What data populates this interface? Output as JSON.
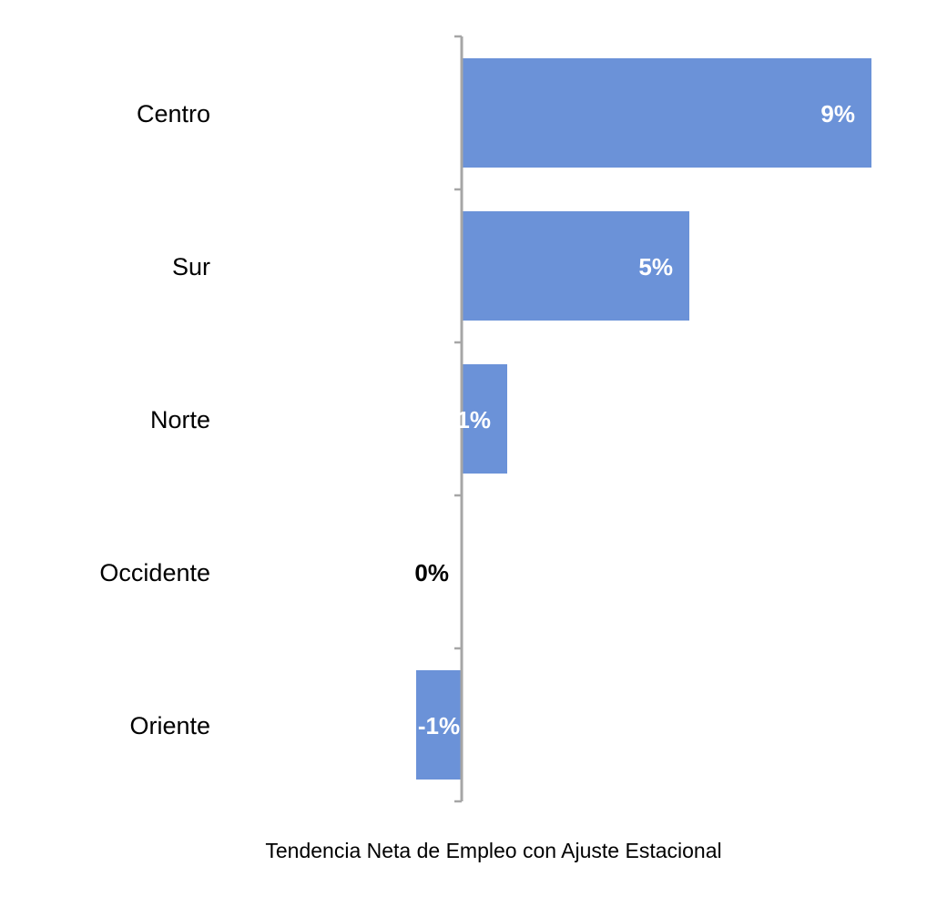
{
  "chart_data": {
    "type": "bar",
    "orientation": "horizontal",
    "categories": [
      "Centro",
      "Sur",
      "Norte",
      "Occidente",
      "Oriente"
    ],
    "values": [
      9,
      5,
      1,
      0,
      -1
    ],
    "data_labels": [
      "9%",
      "5%",
      "1%",
      "0%",
      "-1%"
    ],
    "xlabel": "Tendencia Neta de Empleo con Ajuste Estacional",
    "ylabel": "",
    "title": "",
    "grid": false,
    "legend": "none",
    "colors": {
      "bar": "#6B92D8",
      "axis": "#A6A6A6",
      "label_inside": "#FFFFFF",
      "label_outside": "#000000"
    }
  }
}
